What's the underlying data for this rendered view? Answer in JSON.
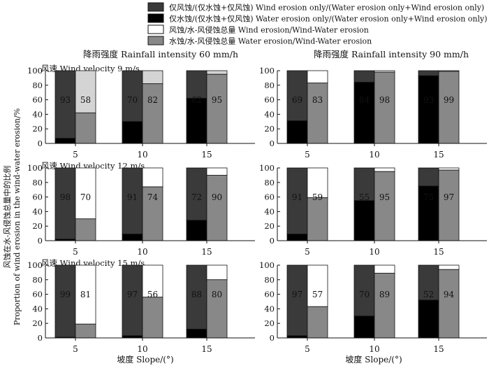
{
  "chart_data": {
    "type": "bar",
    "stacked": true,
    "legend": {
      "placement": "top-center",
      "entries": [
        {
          "label": "仅风蚀/(仅水蚀+仅风蚀) Wind erosion only/(Water erosion only+Wind erosion only)",
          "color": "#3a3a3a"
        },
        {
          "label": "仅水蚀/(仅水蚀+仅风蚀) Water erosion only/(Water erosion only+Wind erosion only)",
          "color": "#000000"
        },
        {
          "label": "风蚀/水-风侵蚀总量 Wind erosion/Wind-Water erosion",
          "color": "#ffffff"
        },
        {
          "label": "水蚀/水-风侵蚀总量 Water erosion/Wind-Water erosion",
          "color": "#888888"
        }
      ]
    },
    "column_titles": [
      "降雨强度 Rainfall intensity 60 mm/h",
      "降雨强度 Rainfall intensity 90 mm/h"
    ],
    "row_titles": [
      "风速 Wind velocity 9 m/s",
      "风速 Wind velocity 12 m/s",
      "风速 Wind velocity 15 m/s"
    ],
    "xlabel": "坡度 Slope/(°)",
    "ylabel_cn": "风蚀在水-风侵蚀总量中的比例",
    "ylabel_en": "Proportion of wind erosion in the wind-water erosion/%",
    "categories": [
      "5",
      "10",
      "15"
    ],
    "ylim": [
      0,
      100
    ],
    "yticks": [
      0,
      20,
      40,
      60,
      80,
      100
    ],
    "colors": {
      "wind_only": "#3a3a3a",
      "water_only": "#000000",
      "wind_total": "#ffffff",
      "water_total": "#888888",
      "wind_total_light": "#d4d4d4",
      "axis": "#111111"
    },
    "panels": [
      {
        "rainfall": "60 mm/h",
        "wind": "9 m/s",
        "bars": [
          {
            "slope": "5",
            "water_only": 7,
            "label_left": "93",
            "water_total": 42,
            "label_right": "58"
          },
          {
            "slope": "10",
            "water_only": 30,
            "label_left": "70",
            "water_total": 82,
            "label_right": "82"
          },
          {
            "slope": "15",
            "water_only": 62,
            "label_left": "62",
            "water_total": 95,
            "label_right": "95"
          }
        ]
      },
      {
        "rainfall": "90 mm/h",
        "wind": "9 m/s",
        "bars": [
          {
            "slope": "5",
            "water_only": 31,
            "label_left": "69",
            "water_total": 83,
            "label_right": "83"
          },
          {
            "slope": "10",
            "water_only": 84,
            "label_left": "84",
            "water_total": 98,
            "label_right": "98"
          },
          {
            "slope": "15",
            "water_only": 93,
            "label_left": "93",
            "water_total": 99,
            "label_right": "99"
          }
        ]
      },
      {
        "rainfall": "60 mm/h",
        "wind": "12 m/s",
        "bars": [
          {
            "slope": "5",
            "water_only": 2,
            "label_left": "98",
            "water_total": 30,
            "label_right": "70"
          },
          {
            "slope": "10",
            "water_only": 9,
            "label_left": "91",
            "water_total": 74,
            "label_right": "74"
          },
          {
            "slope": "15",
            "water_only": 28,
            "label_left": "72",
            "water_total": 90,
            "label_right": "90"
          }
        ]
      },
      {
        "rainfall": "90 mm/h",
        "wind": "12 m/s",
        "bars": [
          {
            "slope": "5",
            "water_only": 9,
            "label_left": "91",
            "water_total": 59,
            "label_right": "59"
          },
          {
            "slope": "10",
            "water_only": 55,
            "label_left": "55",
            "water_total": 95,
            "label_right": "95"
          },
          {
            "slope": "15",
            "water_only": 75,
            "label_left": "75",
            "water_total": 97,
            "label_right": "97"
          }
        ]
      },
      {
        "rainfall": "60 mm/h",
        "wind": "15 m/s",
        "bars": [
          {
            "slope": "5",
            "water_only": 1,
            "label_left": "99",
            "water_total": 19,
            "label_right": "81"
          },
          {
            "slope": "10",
            "water_only": 3,
            "label_left": "97",
            "water_total": 56,
            "label_right": "56"
          },
          {
            "slope": "15",
            "water_only": 12,
            "label_left": "88",
            "water_total": 80,
            "label_right": "80"
          }
        ]
      },
      {
        "rainfall": "90 mm/h",
        "wind": "15 m/s",
        "bars": [
          {
            "slope": "5",
            "water_only": 3,
            "label_left": "97",
            "water_total": 43,
            "label_right": "57"
          },
          {
            "slope": "10",
            "water_only": 30,
            "label_left": "70",
            "water_total": 89,
            "label_right": "89"
          },
          {
            "slope": "15",
            "water_only": 52,
            "label_left": "52",
            "water_total": 94,
            "label_right": "94"
          }
        ]
      }
    ]
  }
}
